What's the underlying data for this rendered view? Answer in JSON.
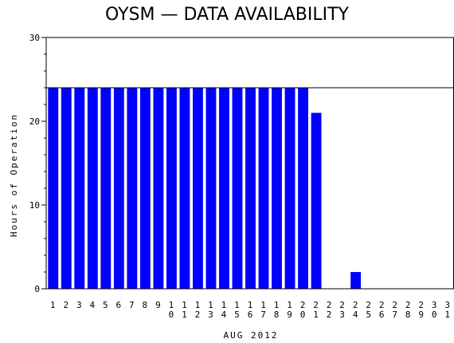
{
  "chart_data": {
    "type": "bar",
    "title": "OYSM — DATA AVAILABILITY",
    "xlabel": "AUG 2012",
    "ylabel": "Hours of Operation",
    "ylim": [
      0,
      30
    ],
    "yticks": [
      0,
      10,
      20,
      30
    ],
    "reference_line": 24,
    "bar_color": "#0000ff",
    "grid": false,
    "categories": [
      "1",
      "2",
      "3",
      "4",
      "5",
      "6",
      "7",
      "8",
      "9",
      "10",
      "11",
      "12",
      "13",
      "14",
      "15",
      "16",
      "17",
      "18",
      "19",
      "20",
      "21",
      "22",
      "23",
      "24",
      "25",
      "26",
      "27",
      "28",
      "29",
      "30",
      "31"
    ],
    "values": [
      24,
      24,
      24,
      24,
      24,
      24,
      24,
      24,
      24,
      24,
      24,
      24,
      24,
      24,
      24,
      24,
      24,
      24,
      24,
      24,
      21,
      0,
      0,
      2,
      0,
      0,
      0,
      0,
      0,
      0,
      0
    ]
  }
}
